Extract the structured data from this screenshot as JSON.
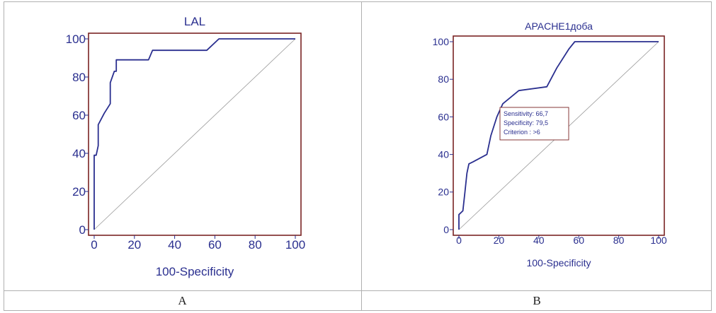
{
  "colors": {
    "curve": "#2a2f8f",
    "frame": "#7a2323",
    "diagonal": "#9a9a9a",
    "text": "#2a2f8f"
  },
  "captions": {
    "a": "A",
    "b": "B"
  },
  "chart_data": [
    {
      "type": "line",
      "title": "LAL",
      "xlabel": "100-Specificity",
      "ylabel": "",
      "xlim": [
        0,
        100
      ],
      "ylim": [
        0,
        100
      ],
      "xticks": [
        0,
        20,
        40,
        60,
        80,
        100
      ],
      "yticks": [
        0,
        20,
        40,
        60,
        80,
        100
      ],
      "reference_line": [
        [
          0,
          0
        ],
        [
          100,
          100
        ]
      ],
      "series": [
        {
          "x": [
            0,
            0,
            1,
            2,
            2,
            5,
            8,
            8,
            10,
            11,
            11,
            15,
            27,
            29,
            56,
            62,
            100
          ],
          "y": [
            0,
            39,
            39,
            44,
            55,
            61,
            66,
            77,
            83,
            83,
            89,
            89,
            89,
            94,
            94,
            100,
            100
          ]
        }
      ]
    },
    {
      "type": "line",
      "title": "APACHE1доба",
      "xlabel": "100-Specificity",
      "ylabel": "",
      "xlim": [
        0,
        100
      ],
      "ylim": [
        0,
        100
      ],
      "xticks": [
        0,
        20,
        40,
        60,
        80,
        100
      ],
      "yticks": [
        0,
        20,
        40,
        60,
        80,
        100
      ],
      "reference_line": [
        [
          0,
          0
        ],
        [
          100,
          100
        ]
      ],
      "annotation": {
        "lines": [
          "Sensitivity: 66,7",
          "Specificity: 79,5",
          "Criterion : >6"
        ]
      },
      "series": [
        {
          "x": [
            0,
            0,
            2,
            3,
            4,
            5,
            7,
            14,
            16,
            19,
            22,
            30,
            44,
            49,
            55,
            58,
            100
          ],
          "y": [
            0,
            8,
            10,
            20,
            30,
            35,
            36,
            40,
            50,
            60,
            67,
            74,
            76,
            86,
            96,
            100,
            100
          ]
        }
      ]
    }
  ]
}
